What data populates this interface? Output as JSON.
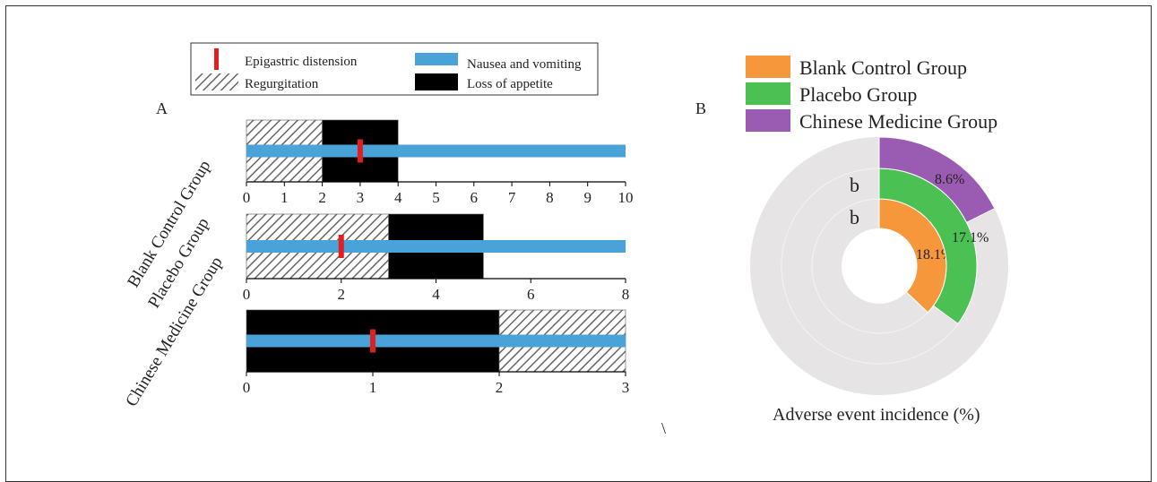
{
  "panel_labels": {
    "a": "A",
    "b": "B"
  },
  "stray_mark": "\\",
  "colors": {
    "epigastric": "#e02020",
    "nausea": "#4aa3d8",
    "loss": "#000000",
    "regurg_line": "#666666",
    "blank": "#f5973a",
    "placebo": "#4cc153",
    "chinese": "#9a5bb3",
    "ring_bg": "#e6e4e4"
  },
  "legend_a": [
    {
      "label": "Epigastric distension",
      "icon": "red-tick"
    },
    {
      "label": "Nausea and vomiting",
      "icon": "blue-bar"
    },
    {
      "label": "Regurgitation",
      "icon": "hatched-box"
    },
    {
      "label": "Loss of appetite",
      "icon": "black-box"
    }
  ],
  "legend_b": [
    {
      "label": "Blank Control Group",
      "color": "#f5973a"
    },
    {
      "label": "Placebo Group",
      "color": "#4cc153"
    },
    {
      "label": "Chinese Medicine Group",
      "color": "#9a5bb3"
    }
  ],
  "pie_title": "Adverse event incidence (%)",
  "chart_data": [
    {
      "type": "bar",
      "title": "",
      "groups": [
        {
          "name": "Blank Control Group",
          "xlim": [
            0,
            10
          ],
          "ticks": [
            0,
            1,
            2,
            3,
            4,
            5,
            6,
            7,
            8,
            9,
            10
          ],
          "regurgitation": 2,
          "loss_of_appetite": 4,
          "nausea_and_vomiting": 10,
          "epigastric_distension": 3
        },
        {
          "name": "Placebo Group",
          "xlim": [
            0,
            8
          ],
          "ticks": [
            0,
            2,
            4,
            6,
            8
          ],
          "regurgitation": 3,
          "loss_of_appetite": 5,
          "nausea_and_vomiting": 8,
          "epigastric_distension": 2
        },
        {
          "name": "Chinese Medicine Group",
          "xlim": [
            0,
            3
          ],
          "ticks": [
            0,
            1,
            2,
            3
          ],
          "loss_of_appetite": 2,
          "regurgitation": 3,
          "nausea_and_vomiting": 3,
          "epigastric_distension": 1
        }
      ]
    },
    {
      "type": "pie",
      "title": "Adverse event incidence (%)",
      "series": [
        {
          "name": "Blank Control Group",
          "value": 18.1,
          "label": "18.1%"
        },
        {
          "name": "Placebo Group",
          "value": 17.1,
          "label": "17.1%"
        },
        {
          "name": "Chinese Medicine Group",
          "value": 8.6,
          "label": "8.6%"
        }
      ],
      "significance_marks": [
        "b",
        "b"
      ]
    }
  ]
}
